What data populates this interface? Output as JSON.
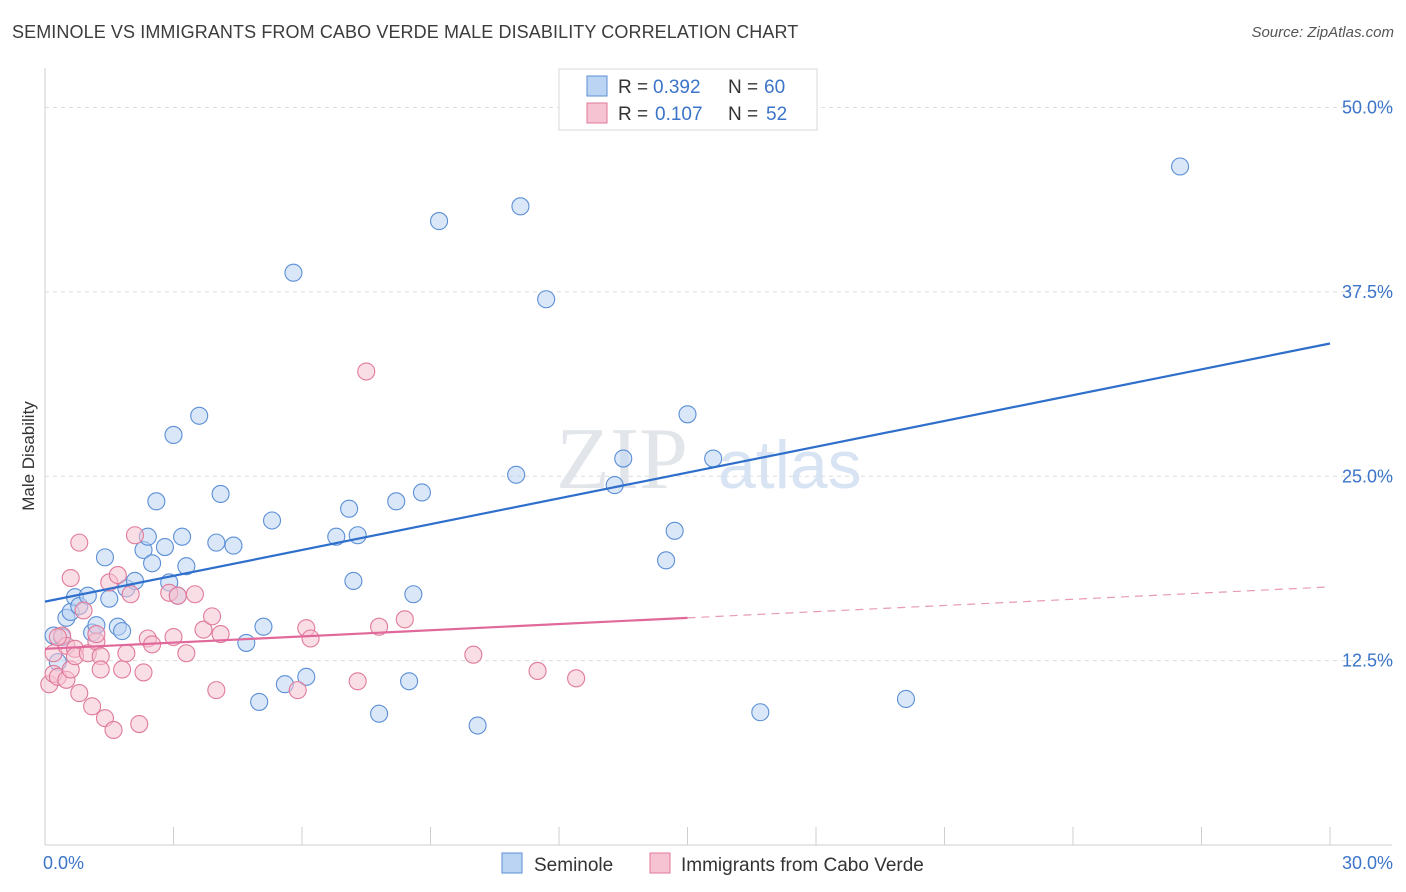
{
  "header": {
    "title": "SEMINOLE VS IMMIGRANTS FROM CABO VERDE MALE DISABILITY CORRELATION CHART",
    "source": "Source: ZipAtlas.com"
  },
  "watermark": {
    "zip": "ZIP",
    "atlas": "atlas"
  },
  "legend_top": {
    "rows": [
      {
        "r_label": "R = ",
        "r_value": "0.392",
        "n_label": "N = ",
        "n_value": "60"
      },
      {
        "r_label": "R = ",
        "r_value": "0.107",
        "n_label": "N = ",
        "n_value": "52"
      }
    ]
  },
  "chart_data": {
    "type": "scatter",
    "xlabel": "",
    "ylabel": "Male Disability",
    "xlim": [
      0,
      30
    ],
    "ylim": [
      0,
      52
    ],
    "x_tick_labels": [
      "0.0%",
      "30.0%"
    ],
    "y_ticks": [
      12.5,
      25.0,
      37.5,
      50.0
    ],
    "y_tick_labels": [
      "12.5%",
      "25.0%",
      "37.5%",
      "50.0%"
    ],
    "grid": "horizontal dashed",
    "legend_position": "bottom",
    "series": [
      {
        "name": "Seminole",
        "color": "#5b8fd6",
        "fill": "#bcd4f3",
        "trend": {
          "x0": 0,
          "y0": 16.5,
          "x1": 30,
          "y1": 34.0,
          "dashed_from": null
        },
        "points": [
          [
            0.2,
            14.2
          ],
          [
            0.3,
            12.4
          ],
          [
            0.4,
            14.1
          ],
          [
            0.5,
            15.4
          ],
          [
            0.6,
            15.8
          ],
          [
            0.7,
            16.8
          ],
          [
            0.8,
            16.2
          ],
          [
            1.0,
            16.9
          ],
          [
            1.1,
            14.4
          ],
          [
            1.2,
            14.9
          ],
          [
            1.4,
            19.5
          ],
          [
            1.5,
            16.7
          ],
          [
            1.7,
            14.8
          ],
          [
            1.8,
            14.5
          ],
          [
            1.9,
            17.4
          ],
          [
            2.1,
            17.9
          ],
          [
            2.3,
            20.0
          ],
          [
            2.4,
            20.9
          ],
          [
            2.5,
            19.1
          ],
          [
            2.6,
            23.3
          ],
          [
            2.8,
            20.2
          ],
          [
            2.9,
            17.8
          ],
          [
            3.0,
            27.8
          ],
          [
            3.1,
            16.9
          ],
          [
            3.2,
            20.9
          ],
          [
            3.3,
            18.9
          ],
          [
            3.6,
            29.1
          ],
          [
            4.0,
            20.5
          ],
          [
            4.1,
            23.8
          ],
          [
            4.4,
            20.3
          ],
          [
            4.7,
            13.7
          ],
          [
            5.0,
            9.7
          ],
          [
            5.1,
            14.8
          ],
          [
            5.3,
            22.0
          ],
          [
            5.6,
            10.9
          ],
          [
            5.8,
            38.8
          ],
          [
            6.1,
            11.4
          ],
          [
            6.8,
            20.9
          ],
          [
            7.1,
            22.8
          ],
          [
            7.2,
            17.9
          ],
          [
            7.3,
            21.0
          ],
          [
            7.8,
            8.9
          ],
          [
            8.2,
            23.3
          ],
          [
            8.5,
            11.1
          ],
          [
            8.6,
            17.0
          ],
          [
            8.8,
            23.9
          ],
          [
            9.2,
            42.3
          ],
          [
            10.1,
            8.1
          ],
          [
            11.0,
            25.1
          ],
          [
            11.1,
            43.3
          ],
          [
            11.7,
            37.0
          ],
          [
            13.3,
            24.4
          ],
          [
            13.5,
            26.2
          ],
          [
            14.5,
            19.3
          ],
          [
            14.7,
            21.3
          ],
          [
            15.0,
            29.2
          ],
          [
            15.6,
            26.2
          ],
          [
            16.7,
            9.0
          ],
          [
            20.1,
            9.9
          ],
          [
            26.5,
            46.0
          ]
        ]
      },
      {
        "name": "Immigrants from Cabo Verde",
        "color": "#e07a9a",
        "fill": "#f6c3d2",
        "trend": {
          "x0": 0,
          "y0": 13.3,
          "x1": 30,
          "y1": 17.5,
          "dashed_from": 15.0
        },
        "points": [
          [
            0.1,
            10.9
          ],
          [
            0.2,
            11.6
          ],
          [
            0.2,
            13.0
          ],
          [
            0.3,
            11.4
          ],
          [
            0.4,
            14.2
          ],
          [
            0.5,
            11.2
          ],
          [
            0.5,
            13.5
          ],
          [
            0.6,
            11.9
          ],
          [
            0.6,
            18.1
          ],
          [
            0.7,
            13.3
          ],
          [
            0.7,
            12.8
          ],
          [
            0.8,
            10.3
          ],
          [
            0.8,
            20.5
          ],
          [
            0.9,
            15.9
          ],
          [
            1.0,
            13.0
          ],
          [
            1.1,
            9.4
          ],
          [
            1.2,
            13.8
          ],
          [
            1.2,
            14.3
          ],
          [
            1.3,
            12.8
          ],
          [
            1.3,
            11.9
          ],
          [
            1.4,
            8.6
          ],
          [
            1.5,
            17.8
          ],
          [
            1.6,
            7.8
          ],
          [
            1.7,
            18.3
          ],
          [
            1.8,
            11.9
          ],
          [
            1.9,
            13.0
          ],
          [
            2.0,
            17.0
          ],
          [
            2.1,
            21.0
          ],
          [
            2.2,
            8.2
          ],
          [
            2.3,
            11.7
          ],
          [
            2.4,
            14.0
          ],
          [
            2.5,
            13.6
          ],
          [
            2.9,
            17.1
          ],
          [
            3.0,
            14.1
          ],
          [
            3.1,
            16.9
          ],
          [
            3.3,
            13.0
          ],
          [
            3.5,
            17.0
          ],
          [
            3.7,
            14.6
          ],
          [
            3.9,
            15.5
          ],
          [
            4.0,
            10.5
          ],
          [
            4.1,
            14.3
          ],
          [
            5.9,
            10.5
          ],
          [
            6.1,
            14.7
          ],
          [
            6.2,
            14.0
          ],
          [
            7.3,
            11.1
          ],
          [
            7.5,
            32.1
          ],
          [
            7.8,
            14.8
          ],
          [
            8.4,
            15.3
          ],
          [
            10.0,
            12.9
          ],
          [
            11.5,
            11.8
          ],
          [
            12.4,
            11.3
          ],
          [
            0.3,
            14.1
          ]
        ]
      }
    ]
  }
}
